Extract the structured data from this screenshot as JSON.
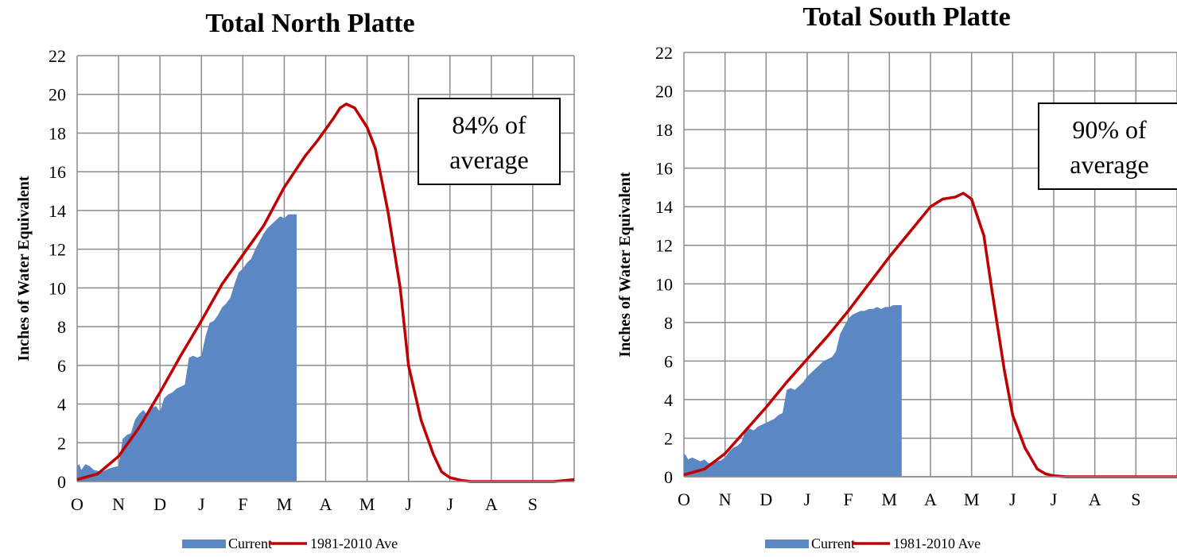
{
  "chart_data": [
    {
      "type": "area",
      "title": "Total North Platte",
      "xlabel": "",
      "ylabel": "Inches of Water Equivalent",
      "ylim": [
        0,
        22
      ],
      "yticks": [
        0,
        2,
        4,
        6,
        8,
        10,
        12,
        14,
        16,
        18,
        20,
        22
      ],
      "categories": [
        "O",
        "N",
        "D",
        "J",
        "F",
        "M",
        "A",
        "M",
        "J",
        "J",
        "A",
        "S"
      ],
      "grid": true,
      "legend_position": "bottom",
      "annotation": {
        "line1": "84% of",
        "line2": "average"
      },
      "series": [
        {
          "name": "Current",
          "kind": "area",
          "color": "#5B87C2",
          "x": [
            0,
            0.05,
            0.1,
            0.2,
            0.3,
            0.4,
            0.5,
            0.6,
            0.7,
            0.8,
            0.9,
            1.0,
            1.1,
            1.2,
            1.3,
            1.4,
            1.5,
            1.6,
            1.7,
            1.8,
            1.9,
            2.0,
            2.1,
            2.2,
            2.3,
            2.4,
            2.5,
            2.6,
            2.7,
            2.8,
            2.9,
            3.0,
            3.1,
            3.2,
            3.3,
            3.4,
            3.5,
            3.6,
            3.7,
            3.8,
            3.9,
            4.0,
            4.1,
            4.2,
            4.3,
            4.4,
            4.5,
            4.6,
            4.7,
            4.8,
            4.9,
            5.0,
            5.1,
            5.2,
            5.3
          ],
          "y": [
            0.8,
            0.9,
            0.6,
            0.9,
            0.8,
            0.6,
            0.55,
            0.5,
            0.6,
            0.7,
            0.75,
            0.8,
            2.2,
            2.4,
            2.5,
            3.2,
            3.5,
            3.7,
            3.4,
            3.8,
            3.9,
            3.6,
            4.3,
            4.5,
            4.6,
            4.8,
            4.9,
            5.0,
            6.4,
            6.5,
            6.4,
            6.5,
            7.5,
            8.2,
            8.3,
            8.6,
            9.0,
            9.2,
            9.5,
            10.2,
            10.8,
            11.0,
            11.3,
            11.5,
            12.0,
            12.4,
            12.8,
            13.1,
            13.3,
            13.5,
            13.7,
            13.6,
            13.8,
            13.8,
            13.8
          ]
        },
        {
          "name": "1981-2010 Ave",
          "kind": "line",
          "color": "#C00000",
          "x": [
            0,
            0.5,
            1.0,
            1.5,
            2.0,
            2.5,
            3.0,
            3.5,
            4.0,
            4.5,
            5.0,
            5.5,
            5.8,
            6.0,
            6.2,
            6.35,
            6.5,
            6.7,
            7.0,
            7.2,
            7.5,
            7.8,
            8.0,
            8.3,
            8.6,
            8.8,
            9.0,
            9.3,
            9.5,
            10.0,
            10.5,
            11.0,
            11.5,
            12.0
          ],
          "y": [
            0.1,
            0.4,
            1.3,
            2.8,
            4.6,
            6.5,
            8.3,
            10.2,
            11.7,
            13.2,
            15.2,
            16.8,
            17.6,
            18.2,
            18.8,
            19.3,
            19.5,
            19.3,
            18.3,
            17.2,
            14.0,
            10.0,
            6.0,
            3.2,
            1.4,
            0.5,
            0.2,
            0.05,
            0.0,
            0.0,
            0.0,
            0.0,
            0.0,
            0.1
          ]
        }
      ]
    },
    {
      "type": "area",
      "title": "Total South Platte",
      "xlabel": "",
      "ylabel": "Inches of Water Equivalent",
      "ylim": [
        0,
        22
      ],
      "yticks": [
        0,
        2,
        4,
        6,
        8,
        10,
        12,
        14,
        16,
        18,
        20,
        22
      ],
      "categories": [
        "O",
        "N",
        "D",
        "J",
        "F",
        "M",
        "A",
        "M",
        "J",
        "J",
        "A",
        "S"
      ],
      "grid": true,
      "legend_position": "bottom",
      "annotation": {
        "line1": "90% of",
        "line2": "average"
      },
      "series": [
        {
          "name": "Current",
          "kind": "area",
          "color": "#5B87C2",
          "x": [
            0,
            0.05,
            0.1,
            0.2,
            0.3,
            0.4,
            0.5,
            0.6,
            0.7,
            0.8,
            0.9,
            1.0,
            1.1,
            1.2,
            1.3,
            1.4,
            1.5,
            1.6,
            1.7,
            1.8,
            1.9,
            2.0,
            2.1,
            2.2,
            2.3,
            2.4,
            2.5,
            2.6,
            2.7,
            2.8,
            2.9,
            3.0,
            3.1,
            3.2,
            3.3,
            3.4,
            3.5,
            3.6,
            3.7,
            3.8,
            3.9,
            4.0,
            4.1,
            4.2,
            4.3,
            4.4,
            4.5,
            4.6,
            4.7,
            4.8,
            4.9,
            5.0,
            5.1,
            5.2,
            5.3
          ],
          "y": [
            1.2,
            1.1,
            0.9,
            1.0,
            0.9,
            0.8,
            0.9,
            0.7,
            0.75,
            0.8,
            0.85,
            1.0,
            1.3,
            1.5,
            1.6,
            1.8,
            2.4,
            2.5,
            2.4,
            2.6,
            2.7,
            2.8,
            2.9,
            3.0,
            3.2,
            3.3,
            4.5,
            4.6,
            4.5,
            4.7,
            4.9,
            5.2,
            5.4,
            5.6,
            5.8,
            6.0,
            6.1,
            6.2,
            6.5,
            7.4,
            7.8,
            8.2,
            8.4,
            8.5,
            8.6,
            8.6,
            8.7,
            8.7,
            8.8,
            8.7,
            8.8,
            8.8,
            8.9,
            8.9,
            8.9
          ]
        },
        {
          "name": "1981-2010 Ave",
          "kind": "line",
          "color": "#C00000",
          "x": [
            0,
            0.5,
            1.0,
            1.5,
            2.0,
            2.5,
            3.0,
            3.5,
            4.0,
            4.5,
            5.0,
            5.5,
            6.0,
            6.3,
            6.6,
            6.8,
            7.0,
            7.3,
            7.5,
            7.8,
            8.0,
            8.3,
            8.6,
            8.8,
            9.0,
            9.3,
            9.5,
            10.0,
            10.5,
            11.0,
            11.5,
            12.0
          ],
          "y": [
            0.1,
            0.4,
            1.2,
            2.4,
            3.6,
            4.9,
            6.1,
            7.3,
            8.6,
            10.0,
            11.4,
            12.7,
            14.0,
            14.4,
            14.5,
            14.7,
            14.4,
            12.5,
            9.6,
            5.5,
            3.2,
            1.5,
            0.4,
            0.15,
            0.05,
            0.0,
            0.0,
            0.0,
            0.0,
            0.0,
            0.0,
            0.0
          ]
        }
      ]
    }
  ]
}
